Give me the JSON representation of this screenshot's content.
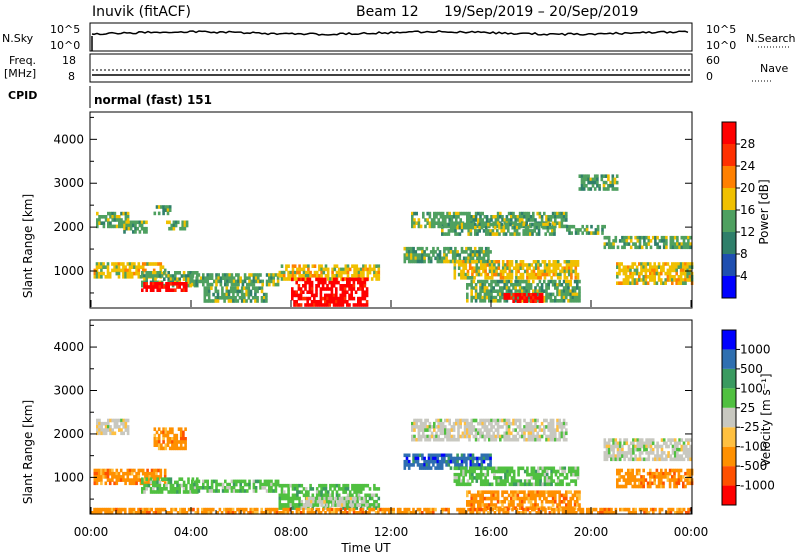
{
  "header": {
    "station": "Inuvik (fitACF)",
    "beam": "Beam 12",
    "date_range": "19/Sep/2019 – 20/Sep/2019"
  },
  "strip_nsky": {
    "left_label": "N.Sky",
    "left_ticks": [
      "10^5",
      "10^0"
    ],
    "right_ticks": [
      "10^5",
      "10^0"
    ],
    "right_label": "N.Search"
  },
  "strip_freq": {
    "left_label_1": "Freq.",
    "left_label_2": "[MHz]",
    "left_ticks": [
      "18",
      "8"
    ],
    "right_ticks": [
      "60",
      "0"
    ],
    "right_label": "Nave"
  },
  "strip_cpid": {
    "label": "CPID",
    "text": "normal (fast) 151"
  },
  "chart_data": [
    {
      "type": "heatmap",
      "name": "power",
      "ylabel": "Slant Range [km]",
      "xlabel": "",
      "xlim": [
        "00:00",
        "24:00"
      ],
      "ylim": [
        180,
        4600
      ],
      "yticks": [
        "1000",
        "2000",
        "3000",
        "4000"
      ],
      "colorbar": {
        "label": "Power [dB]",
        "ticks": [
          "28",
          "24",
          "20",
          "16",
          "12",
          "8",
          "4"
        ],
        "colors": [
          "#0000ff",
          "#1f4fb0",
          "#2f7f6a",
          "#4fa060",
          "#f0c000",
          "#ff8000",
          "#ff3000",
          "#ff0000"
        ]
      },
      "regions": [
        {
          "x": [
            0.2,
            1.5
          ],
          "y": [
            2050,
            2350
          ],
          "level": 12
        },
        {
          "x": [
            1.2,
            2.2
          ],
          "y": [
            1900,
            2150
          ],
          "level": 12
        },
        {
          "x": [
            2.5,
            3.2
          ],
          "y": [
            2350,
            2500
          ],
          "level": 12
        },
        {
          "x": [
            3.0,
            3.8
          ],
          "y": [
            1950,
            2150
          ],
          "level": 12
        },
        {
          "x": [
            0.1,
            3.0
          ],
          "y": [
            900,
            1200
          ],
          "level": 16
        },
        {
          "x": [
            2.0,
            4.2
          ],
          "y": [
            650,
            1000
          ],
          "level": 12
        },
        {
          "x": [
            2.0,
            3.8
          ],
          "y": [
            580,
            750
          ],
          "level": 28
        },
        {
          "x": [
            4.0,
            7.5
          ],
          "y": [
            700,
            950
          ],
          "level": 12
        },
        {
          "x": [
            4.5,
            7.0
          ],
          "y": [
            350,
            650
          ],
          "level": 12
        },
        {
          "x": [
            7.5,
            11.5
          ],
          "y": [
            850,
            1150
          ],
          "level": 16
        },
        {
          "x": [
            8.0,
            11.0
          ],
          "y": [
            250,
            850
          ],
          "level": 28
        },
        {
          "x": [
            12.8,
            19.0
          ],
          "y": [
            2050,
            2350
          ],
          "level": 12
        },
        {
          "x": [
            14.0,
            18.5
          ],
          "y": [
            1850,
            2100
          ],
          "level": 12
        },
        {
          "x": [
            12.5,
            16.0
          ],
          "y": [
            1200,
            1550
          ],
          "level": 12
        },
        {
          "x": [
            14.5,
            19.5
          ],
          "y": [
            850,
            1250
          ],
          "level": 16
        },
        {
          "x": [
            15.0,
            19.5
          ],
          "y": [
            350,
            800
          ],
          "level": 12
        },
        {
          "x": [
            16.5,
            18.0
          ],
          "y": [
            300,
            500
          ],
          "level": 28
        },
        {
          "x": [
            19.0,
            20.5
          ],
          "y": [
            1850,
            2050
          ],
          "level": 12
        },
        {
          "x": [
            20.5,
            24.0
          ],
          "y": [
            1550,
            1800
          ],
          "level": 12
        },
        {
          "x": [
            21.0,
            24.0
          ],
          "y": [
            750,
            1200
          ],
          "level": 16
        },
        {
          "x": [
            19.5,
            21.0
          ],
          "y": [
            2900,
            3200
          ],
          "level": 12
        }
      ]
    },
    {
      "type": "heatmap",
      "name": "velocity",
      "ylabel": "Slant Range [km]",
      "xlabel": "Time UT",
      "xlim": [
        "00:00",
        "24:00"
      ],
      "ylim": [
        180,
        4600
      ],
      "yticks": [
        "1000",
        "2000",
        "3000",
        "4000"
      ],
      "xticks": [
        "00:00",
        "04:00",
        "08:00",
        "12:00",
        "16:00",
        "20:00",
        "00:00"
      ],
      "colorbar": {
        "label": "Velocity [m s⁻¹]",
        "ticks": [
          "1000",
          "500",
          "100",
          "25",
          "-25",
          "-100",
          "-500",
          "-1000"
        ],
        "colors": [
          "#ff0000",
          "#ff5000",
          "#ff9000",
          "#ffc040",
          "#c8c8c0",
          "#50c040",
          "#3a9a60",
          "#2f6fb0",
          "#0000ff"
        ]
      },
      "regions": [
        {
          "x": [
            0.2,
            1.5
          ],
          "y": [
            2050,
            2350
          ],
          "level": 0
        },
        {
          "x": [
            2.5,
            3.8
          ],
          "y": [
            1700,
            2150
          ],
          "level": -100
        },
        {
          "x": [
            0.1,
            3.0
          ],
          "y": [
            900,
            1200
          ],
          "level": -100
        },
        {
          "x": [
            2.0,
            4.2
          ],
          "y": [
            650,
            1000
          ],
          "level": 100
        },
        {
          "x": [
            4.0,
            7.5
          ],
          "y": [
            700,
            950
          ],
          "level": 100
        },
        {
          "x": [
            7.5,
            11.5
          ],
          "y": [
            300,
            850
          ],
          "level": 100
        },
        {
          "x": [
            8.5,
            11.0
          ],
          "y": [
            350,
            550
          ],
          "level": 0
        },
        {
          "x": [
            12.8,
            19.0
          ],
          "y": [
            1850,
            2350
          ],
          "level": 0
        },
        {
          "x": [
            12.5,
            16.0
          ],
          "y": [
            1200,
            1550
          ],
          "level": 500
        },
        {
          "x": [
            14.5,
            19.5
          ],
          "y": [
            850,
            1250
          ],
          "level": 100
        },
        {
          "x": [
            15.0,
            19.5
          ],
          "y": [
            300,
            700
          ],
          "level": -100
        },
        {
          "x": [
            20.5,
            24.0
          ],
          "y": [
            1450,
            1900
          ],
          "level": 0
        },
        {
          "x": [
            21.0,
            24.0
          ],
          "y": [
            800,
            1200
          ],
          "level": -100
        },
        {
          "x": [
            0.0,
            24.0
          ],
          "y": [
            180,
            300
          ],
          "level": -100
        }
      ]
    }
  ]
}
